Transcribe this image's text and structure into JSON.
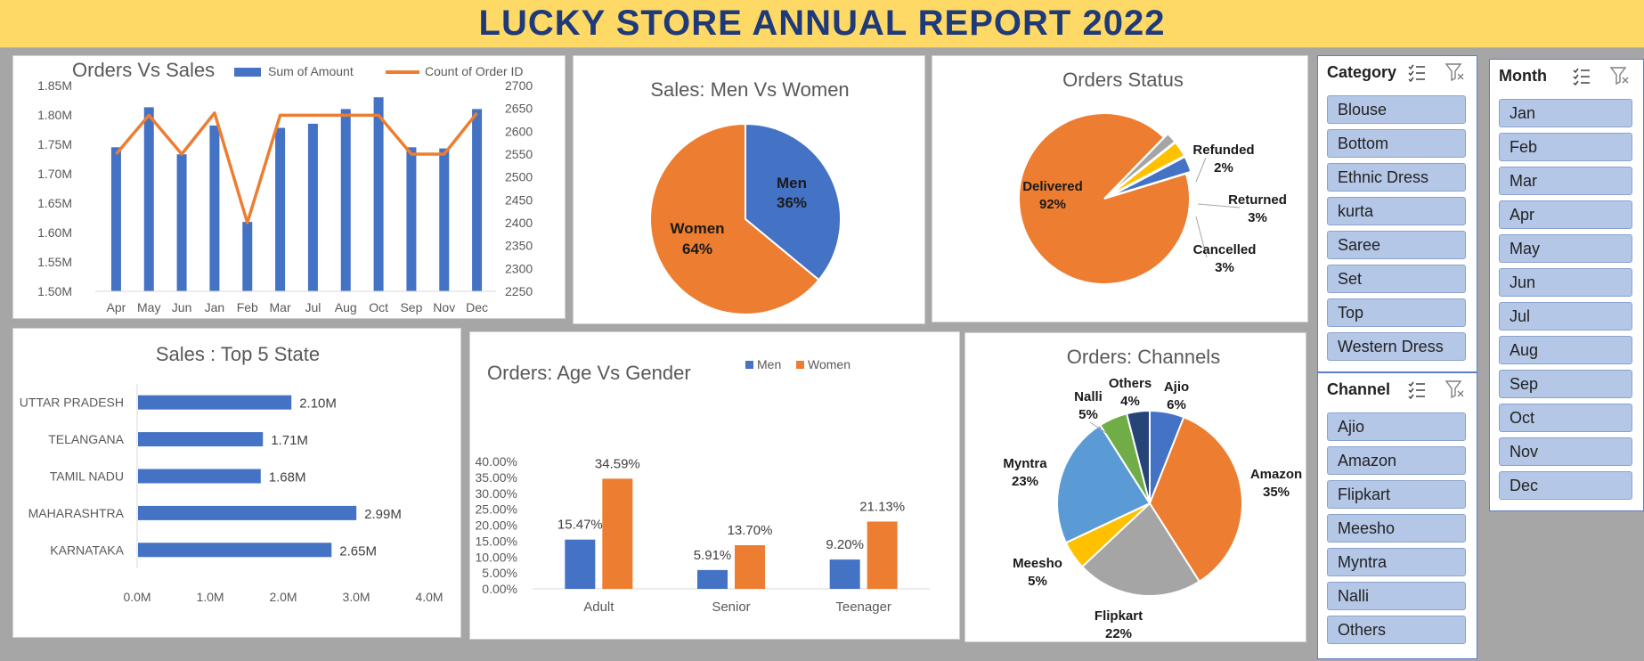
{
  "header": {
    "title": "LUCKY STORE ANNUAL REPORT 2022"
  },
  "colors": {
    "blue": "#4472c4",
    "orange": "#ed7d31",
    "gray": "#a5a5a5",
    "yellow": "#ffc000",
    "lightblue": "#5b9bd5",
    "green": "#70ad47",
    "navy": "#264478",
    "header_bg": "#ffd966",
    "title_text": "#1f3a7a"
  },
  "chart_data": [
    {
      "id": "orders_vs_sales",
      "type": "bar+line",
      "title": "Orders Vs Sales",
      "categories": [
        "Apr",
        "May",
        "Jun",
        "Jan",
        "Feb",
        "Mar",
        "Jul",
        "Aug",
        "Oct",
        "Sep",
        "Nov",
        "Dec"
      ],
      "series": [
        {
          "name": "Sum of Amount",
          "type": "bar",
          "axis": "left",
          "values": [
            1.745,
            1.813,
            1.733,
            1.782,
            1.618,
            1.778,
            1.785,
            1.81,
            1.83,
            1.745,
            1.743,
            1.81
          ]
        },
        {
          "name": "Count of Order ID",
          "type": "line",
          "axis": "right",
          "values": [
            2550,
            2635,
            2550,
            2640,
            2400,
            2635,
            2635,
            2635,
            2635,
            2550,
            2550,
            2640
          ]
        }
      ],
      "yleft": {
        "min": 1.5,
        "max": 1.85,
        "ticks": [
          "1.50M",
          "1.55M",
          "1.60M",
          "1.65M",
          "1.70M",
          "1.75M",
          "1.80M",
          "1.85M"
        ]
      },
      "yright": {
        "min": 2250,
        "max": 2700,
        "ticks": [
          "2250",
          "2300",
          "2350",
          "2400",
          "2450",
          "2500",
          "2550",
          "2600",
          "2650",
          "2700"
        ]
      },
      "legend": "top"
    },
    {
      "id": "men_vs_women",
      "type": "pie",
      "title": "Sales: Men Vs Women",
      "slices": [
        {
          "label": "Men",
          "value": 36,
          "pct": "36%",
          "color": "#4472c4"
        },
        {
          "label": "Women",
          "value": 64,
          "pct": "64%",
          "color": "#ed7d31"
        }
      ]
    },
    {
      "id": "orders_status",
      "type": "pie",
      "title": "Orders Status",
      "slices": [
        {
          "label": "Delivered",
          "value": 92,
          "pct": "92%",
          "color": "#ed7d31"
        },
        {
          "label": "Refunded",
          "value": 2,
          "pct": "2%",
          "color": "#a5a5a5"
        },
        {
          "label": "Returned",
          "value": 3,
          "pct": "3%",
          "color": "#ffc000"
        },
        {
          "label": "Cancelled",
          "value": 3,
          "pct": "3%",
          "color": "#4472c4"
        }
      ]
    },
    {
      "id": "top5_state",
      "type": "bar",
      "orientation": "horizontal",
      "title": "Sales : Top 5 State",
      "categories": [
        "UTTAR PRADESH",
        "TELANGANA",
        "TAMIL NADU",
        "MAHARASHTRA",
        "KARNATAKA"
      ],
      "values": [
        2.1,
        1.71,
        1.68,
        2.99,
        2.65
      ],
      "value_labels": [
        "2.10M",
        "1.71M",
        "1.68M",
        "2.99M",
        "2.65M"
      ],
      "xlim": [
        0,
        4
      ],
      "xticks": [
        "0.0M",
        "1.0M",
        "2.0M",
        "3.0M",
        "4.0M"
      ]
    },
    {
      "id": "age_vs_gender",
      "type": "bar",
      "title": "Orders: Age Vs Gender",
      "categories": [
        "Adult",
        "Senior",
        "Teenager"
      ],
      "series": [
        {
          "name": "Men",
          "values": [
            15.47,
            5.91,
            9.2
          ],
          "labels": [
            "15.47%",
            "5.91%",
            "9.20%"
          ],
          "color": "#4472c4"
        },
        {
          "name": "Women",
          "values": [
            34.59,
            13.7,
            21.13
          ],
          "labels": [
            "34.59%",
            "13.70%",
            "21.13%"
          ],
          "color": "#ed7d31"
        }
      ],
      "ylim": [
        0,
        40
      ],
      "yticks": [
        "0.00%",
        "5.00%",
        "10.00%",
        "15.00%",
        "20.00%",
        "25.00%",
        "30.00%",
        "35.00%",
        "40.00%"
      ],
      "legend": "top"
    },
    {
      "id": "channels",
      "type": "pie",
      "title": "Orders: Channels",
      "slices": [
        {
          "label": "Ajio",
          "value": 6,
          "pct": "6%",
          "color": "#4472c4"
        },
        {
          "label": "Amazon",
          "value": 35,
          "pct": "35%",
          "color": "#ed7d31"
        },
        {
          "label": "Flipkart",
          "value": 22,
          "pct": "22%",
          "color": "#a5a5a5"
        },
        {
          "label": "Meesho",
          "value": 5,
          "pct": "5%",
          "color": "#ffc000"
        },
        {
          "label": "Myntra",
          "value": 23,
          "pct": "23%",
          "color": "#5b9bd5"
        },
        {
          "label": "Nalli",
          "value": 5,
          "pct": "5%",
          "color": "#70ad47"
        },
        {
          "label": "Others",
          "value": 4,
          "pct": "4%",
          "color": "#264478"
        }
      ]
    }
  ],
  "slicers": {
    "category": {
      "title": "Category",
      "items": [
        "Blouse",
        "Bottom",
        "Ethnic Dress",
        "kurta",
        "Saree",
        "Set",
        "Top",
        "Western Dress"
      ]
    },
    "channel": {
      "title": "Channel",
      "items": [
        "Ajio",
        "Amazon",
        "Flipkart",
        "Meesho",
        "Myntra",
        "Nalli",
        "Others"
      ]
    },
    "month": {
      "title": "Month",
      "items": [
        "Jan",
        "Feb",
        "Mar",
        "Apr",
        "May",
        "Jun",
        "Jul",
        "Aug",
        "Sep",
        "Oct",
        "Nov",
        "Dec"
      ]
    }
  },
  "icons": {
    "multi_select": "multi-select-icon",
    "clear_filter": "clear-filter-icon"
  }
}
